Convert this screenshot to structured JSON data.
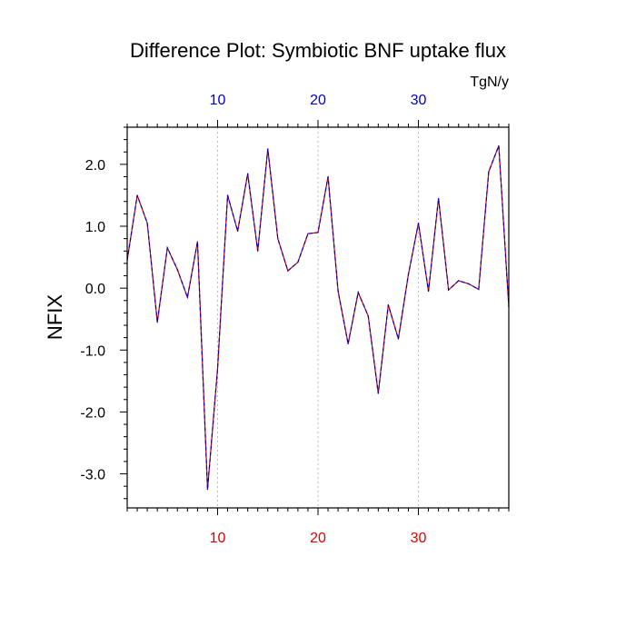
{
  "chart_data": {
    "type": "line",
    "title": "Difference Plot: Symbiotic BNF uptake flux",
    "units": "TgN/y",
    "ylabel": "NFIX",
    "xlim": [
      1,
      39
    ],
    "ylim": [
      -3.55,
      2.6
    ],
    "x_ticks": [
      10,
      20,
      30
    ],
    "x_tick_labels": [
      "10",
      "20",
      "30"
    ],
    "y_ticks": [
      2.0,
      1.0,
      0.0,
      -1.0,
      -2.0,
      -3.0
    ],
    "y_tick_labels": [
      "2.0",
      "1.0",
      "0.0",
      "-1.0",
      "-2.0",
      "-3.0"
    ],
    "grid": "vertical-dashed",
    "colors": {
      "top_ticks": "#0000cc",
      "bottom_ticks": "#e00000",
      "line_primary": "#0000cc",
      "line_secondary": "#cc0000",
      "grid": "#bbbbbb",
      "axis": "#000000"
    },
    "series": [
      {
        "x": [
          1,
          2,
          3,
          4,
          5,
          6,
          7,
          8,
          9,
          10,
          11,
          12,
          13,
          14,
          15,
          16,
          17,
          18,
          19,
          20,
          21,
          22,
          23,
          24,
          25,
          26,
          27,
          28,
          29,
          30,
          31,
          32,
          33,
          34,
          35,
          36,
          37,
          38,
          39
        ],
        "values": [
          0.45,
          1.5,
          1.05,
          -0.55,
          0.65,
          0.3,
          -0.15,
          0.75,
          -3.25,
          -1.3,
          1.5,
          0.92,
          1.85,
          0.6,
          2.25,
          0.8,
          0.28,
          0.42,
          0.88,
          0.9,
          1.8,
          -0.05,
          -0.9,
          -0.07,
          -0.45,
          -1.7,
          -0.27,
          -0.82,
          0.22,
          1.05,
          -0.05,
          1.45,
          -0.03,
          0.12,
          0.07,
          -0.02,
          1.88,
          2.3,
          -0.3
        ]
      }
    ]
  }
}
